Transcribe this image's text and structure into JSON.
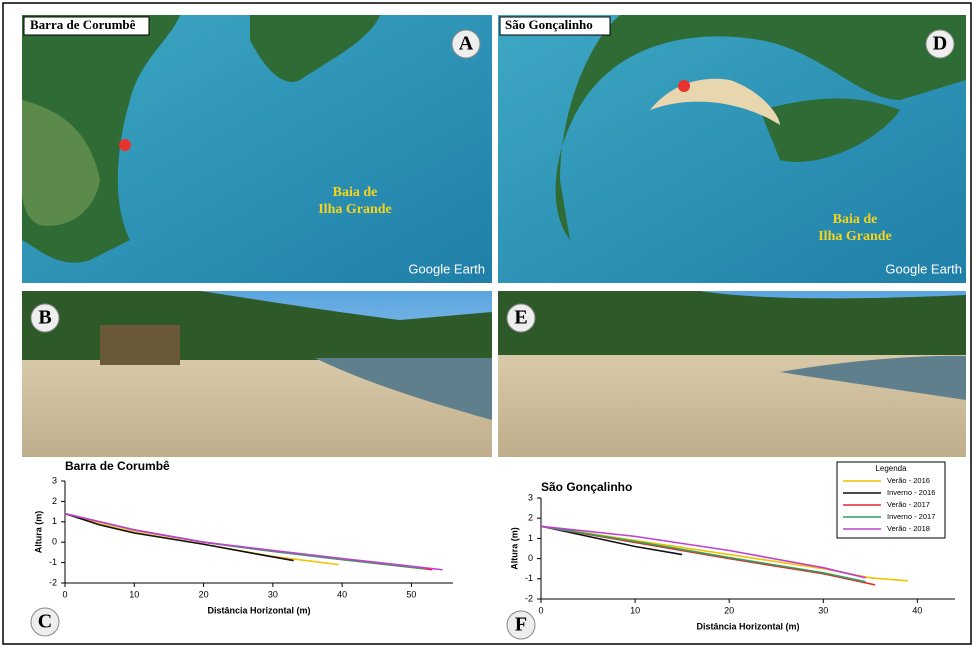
{
  "panels": {
    "a": {
      "letter": "A",
      "label": "Barra de Corumbê",
      "water": [
        "Baia de",
        "Ilha Grande"
      ],
      "credit": "Google Earth"
    },
    "b": {
      "letter": "B"
    },
    "c": {
      "letter": "C"
    },
    "d": {
      "letter": "D",
      "label": "São Gonçalinho",
      "water": [
        "Baia de",
        "Ilha Grande"
      ],
      "credit": "Google Earth"
    },
    "e": {
      "letter": "E"
    },
    "f": {
      "letter": "F"
    }
  },
  "chart_data": [
    {
      "type": "line",
      "title": "Barra de Corumbê",
      "x_label": "Distância Horizontal (m)",
      "y_label": "Altura (m)",
      "xlim": [
        0,
        56
      ],
      "xticks": [
        0,
        10,
        20,
        30,
        40,
        50
      ],
      "ylim": [
        -2,
        3
      ],
      "yticks": [
        -2,
        -1,
        0,
        1,
        2,
        3
      ],
      "series": [
        {
          "color": "#f2c200",
          "x": [
            0,
            5,
            10,
            20,
            30,
            39.5
          ],
          "values": [
            1.4,
            0.9,
            0.5,
            -0.1,
            -0.7,
            -1.1
          ]
        },
        {
          "color": "#111111",
          "x": [
            0,
            5,
            10,
            20,
            28,
            33
          ],
          "values": [
            1.4,
            0.85,
            0.45,
            -0.1,
            -0.6,
            -0.9
          ]
        },
        {
          "color": "#e8262a",
          "x": [
            0,
            10,
            20,
            30,
            40,
            53
          ],
          "values": [
            1.4,
            0.6,
            0.0,
            -0.45,
            -0.85,
            -1.35
          ]
        },
        {
          "color": "#2ca25f",
          "x": [
            0,
            10,
            20,
            30,
            40,
            52
          ],
          "values": [
            1.4,
            0.6,
            0.0,
            -0.45,
            -0.85,
            -1.3
          ]
        },
        {
          "color": "#c040d0",
          "x": [
            0,
            10,
            20,
            30,
            40,
            54.5
          ],
          "values": [
            1.4,
            0.6,
            0.0,
            -0.4,
            -0.8,
            -1.35
          ]
        }
      ]
    },
    {
      "type": "line",
      "title": "São Gonçalinho",
      "x_label": "Distância Horizontal (m)",
      "y_label": "Altura (m)",
      "xlim": [
        0,
        44
      ],
      "xticks": [
        0,
        10,
        20,
        30,
        40
      ],
      "ylim": [
        -2,
        3
      ],
      "yticks": [
        -2,
        -1,
        0,
        1,
        2,
        3
      ],
      "legend_title": "Legenda",
      "legend": "upper right",
      "series": [
        {
          "name": "Verão - 2016",
          "color": "#f2c200",
          "x": [
            0,
            10,
            20,
            30,
            35,
            39
          ],
          "values": [
            1.6,
            0.9,
            0.2,
            -0.5,
            -0.95,
            -1.1
          ]
        },
        {
          "name": "Inverno - 2016",
          "color": "#111111",
          "x": [
            0,
            5,
            10,
            15
          ],
          "values": [
            1.6,
            1.1,
            0.6,
            0.2
          ]
        },
        {
          "name": "Verão - 2017",
          "color": "#e8262a",
          "x": [
            0,
            10,
            20,
            30,
            35.5
          ],
          "values": [
            1.6,
            0.8,
            0.0,
            -0.75,
            -1.3
          ]
        },
        {
          "name": "Inverno - 2017",
          "color": "#2ca25f",
          "x": [
            0,
            10,
            20,
            30,
            34.5
          ],
          "values": [
            1.6,
            0.85,
            0.05,
            -0.7,
            -1.15
          ]
        },
        {
          "name": "Verão - 2018",
          "color": "#c040d0",
          "x": [
            0,
            10,
            20,
            30,
            34.5
          ],
          "values": [
            1.6,
            1.1,
            0.4,
            -0.45,
            -0.95
          ]
        }
      ]
    }
  ]
}
